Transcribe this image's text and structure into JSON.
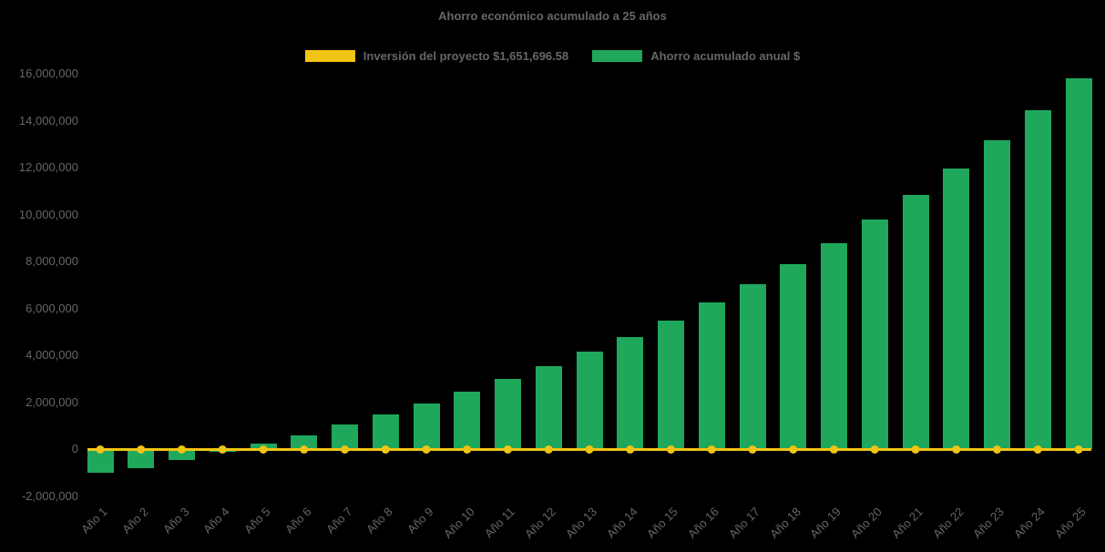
{
  "chart_data": {
    "type": "bar",
    "title": "Ahorro económico acumulado a 25 años",
    "categories": [
      "Año 1",
      "Año 2",
      "Año 3",
      "Año 4",
      "Año 5",
      "Año 6",
      "Año 7",
      "Año 8",
      "Año 9",
      "Año 10",
      "Año 11",
      "Año 12",
      "Año 13",
      "Año 14",
      "Año 15",
      "Año 16",
      "Año 17",
      "Año 18",
      "Año 19",
      "Año 20",
      "Año 21",
      "Año 22",
      "Año 23",
      "Año 24",
      "Año 25"
    ],
    "series": [
      {
        "name": "Inversión del proyecto $1,651,696.58",
        "type": "line",
        "color": "#F0C413",
        "values": [
          0,
          0,
          0,
          0,
          0,
          0,
          0,
          0,
          0,
          0,
          0,
          0,
          0,
          0,
          0,
          0,
          0,
          0,
          0,
          0,
          0,
          0,
          0,
          0,
          0
        ]
      },
      {
        "name": "Ahorro acumulado anual $",
        "type": "bar",
        "color": "#1FA85C",
        "values": [
          -1000000,
          -800000,
          -450000,
          -100000,
          250000,
          600000,
          1050000,
          1500000,
          1950000,
          2450000,
          3000000,
          3550000,
          4150000,
          4800000,
          5500000,
          6250000,
          7050000,
          7900000,
          8800000,
          9800000,
          10850000,
          11950000,
          13150000,
          14450000,
          15800000
        ]
      }
    ],
    "ylim": [
      -2000000,
      16000000
    ],
    "ytick_step": 2000000,
    "ytick_labels": [
      "16,000,000",
      "14,000,000",
      "12,000,000",
      "10,000,000",
      "8,000,000",
      "6,000,000",
      "4,000,000",
      "2,000,000",
      "0",
      "-2,000,000"
    ],
    "grid": false,
    "legend_position": "top",
    "background_color": "#000000",
    "text_color": "#666666"
  }
}
